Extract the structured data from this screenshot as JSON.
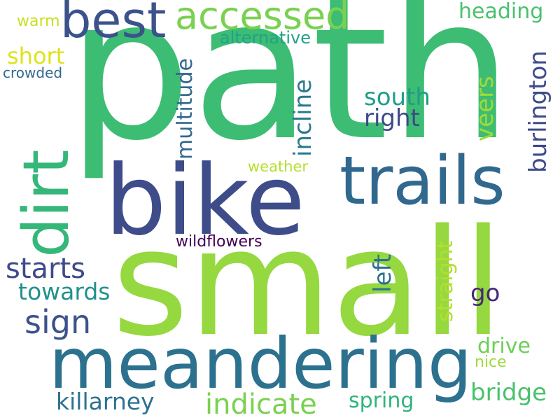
{
  "words": {
    "path": {
      "text": "path",
      "color": "#3dbc74"
    },
    "small": {
      "text": "small",
      "color": "#95d840"
    },
    "bike": {
      "text": "bike",
      "color": "#3e4c8a"
    },
    "meandering": {
      "text": "meandering",
      "color": "#2c728e"
    },
    "trails": {
      "text": "trails",
      "color": "#31688e"
    },
    "dirt": {
      "text": "dirt",
      "color": "#35b779"
    },
    "best": {
      "text": "best",
      "color": "#3b528b"
    },
    "accessed": {
      "text": "accessed",
      "color": "#7ad151"
    },
    "sign": {
      "text": "sign",
      "color": "#3b528b"
    },
    "starts": {
      "text": "starts",
      "color": "#3e4a89"
    },
    "indicate": {
      "text": "indicate",
      "color": "#7ad151"
    },
    "towards": {
      "text": "towards",
      "color": "#21918c"
    },
    "killarney": {
      "text": "killarney",
      "color": "#2c728e"
    },
    "heading": {
      "text": "heading",
      "color": "#4ac16d"
    },
    "alternative": {
      "text": "alternative",
      "color": "#20a386"
    },
    "south": {
      "text": "south",
      "color": "#1f9e89"
    },
    "right": {
      "text": "right",
      "color": "#3e4989"
    },
    "short": {
      "text": "short",
      "color": "#dde318"
    },
    "crowded": {
      "text": "crowded",
      "color": "#31688e"
    },
    "warm": {
      "text": "warm",
      "color": "#c8e020"
    },
    "multitude": {
      "text": "multitude",
      "color": "#31688e"
    },
    "incline": {
      "text": "incline",
      "color": "#2a788e"
    },
    "veers": {
      "text": "veers",
      "color": "#a0da39"
    },
    "burlington": {
      "text": "burlington",
      "color": "#3e4a89"
    },
    "weather": {
      "text": "weather",
      "color": "#b5de2b"
    },
    "wildflowers": {
      "text": "wildflowers",
      "color": "#440154"
    },
    "left": {
      "text": "left",
      "color": "#2c728e"
    },
    "straight": {
      "text": "straight",
      "color": "#b5de2b"
    },
    "go": {
      "text": "go",
      "color": "#482878"
    },
    "drive": {
      "text": "drive",
      "color": "#6ece58"
    },
    "nice": {
      "text": "nice",
      "color": "#a0da39"
    },
    "bridge": {
      "text": "bridge",
      "color": "#4ac16d"
    },
    "spring": {
      "text": "spring",
      "color": "#2fb47c"
    }
  }
}
